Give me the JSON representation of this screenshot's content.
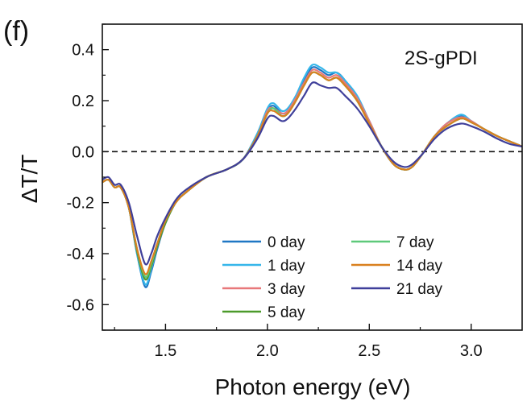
{
  "chart_data": {
    "type": "line",
    "panel_label": "(f)",
    "inset_label": "2S-gPDI",
    "xlabel": "Photon energy (eV)",
    "ylabel": "ΔT/T",
    "xlim": [
      1.19,
      3.25
    ],
    "ylim": [
      -0.7,
      0.5
    ],
    "xticks": [
      1.5,
      2.0,
      2.5,
      3.0
    ],
    "xtick_labels": [
      "1.5",
      "2.0",
      "2.5",
      "3.0"
    ],
    "yticks": [
      -0.6,
      -0.4,
      -0.2,
      0.0,
      0.2,
      0.4
    ],
    "ytick_labels": [
      "-0.6",
      "-0.4",
      "-0.2",
      "0.0",
      "0.2",
      "0.4"
    ],
    "zero_line": "dashed",
    "grid": false,
    "legend_position": "bottom-center",
    "x": [
      1.19,
      1.22,
      1.25,
      1.28,
      1.32,
      1.36,
      1.4,
      1.43,
      1.46,
      1.5,
      1.55,
      1.6,
      1.7,
      1.8,
      1.88,
      1.95,
      2.0,
      2.03,
      2.07,
      2.1,
      2.14,
      2.18,
      2.22,
      2.26,
      2.3,
      2.34,
      2.38,
      2.44,
      2.5,
      2.56,
      2.62,
      2.67,
      2.71,
      2.76,
      2.82,
      2.88,
      2.95,
      3.0,
      3.06,
      3.13,
      3.19,
      3.25
    ],
    "series": [
      {
        "name": "0 day",
        "color": "#1f77c4",
        "values": [
          -0.12,
          -0.11,
          -0.14,
          -0.14,
          -0.22,
          -0.4,
          -0.53,
          -0.47,
          -0.38,
          -0.28,
          -0.2,
          -0.16,
          -0.1,
          -0.07,
          -0.03,
          0.07,
          0.16,
          0.18,
          0.15,
          0.16,
          0.21,
          0.28,
          0.33,
          0.32,
          0.3,
          0.31,
          0.28,
          0.21,
          0.12,
          0.02,
          -0.05,
          -0.07,
          -0.06,
          -0.01,
          0.06,
          0.11,
          0.14,
          0.12,
          0.09,
          0.06,
          0.04,
          0.02
        ]
      },
      {
        "name": "1 day",
        "color": "#35b6ea",
        "values": [
          -0.12,
          -0.11,
          -0.14,
          -0.14,
          -0.22,
          -0.4,
          -0.52,
          -0.46,
          -0.37,
          -0.28,
          -0.2,
          -0.16,
          -0.1,
          -0.07,
          -0.03,
          0.07,
          0.17,
          0.19,
          0.16,
          0.17,
          0.22,
          0.29,
          0.34,
          0.33,
          0.31,
          0.31,
          0.28,
          0.22,
          0.12,
          0.02,
          -0.05,
          -0.07,
          -0.06,
          -0.01,
          0.06,
          0.11,
          0.145,
          0.12,
          0.09,
          0.06,
          0.04,
          0.02
        ]
      },
      {
        "name": "3 day",
        "color": "#e8787a",
        "values": [
          -0.12,
          -0.11,
          -0.14,
          -0.14,
          -0.22,
          -0.39,
          -0.5,
          -0.45,
          -0.37,
          -0.28,
          -0.2,
          -0.16,
          -0.1,
          -0.07,
          -0.03,
          0.06,
          0.16,
          0.17,
          0.15,
          0.16,
          0.21,
          0.27,
          0.32,
          0.31,
          0.29,
          0.3,
          0.27,
          0.21,
          0.12,
          0.02,
          -0.05,
          -0.07,
          -0.06,
          -0.01,
          0.06,
          0.11,
          0.135,
          0.12,
          0.09,
          0.06,
          0.04,
          0.02
        ]
      },
      {
        "name": "5 day",
        "color": "#4c9a2a",
        "values": [
          -0.12,
          -0.11,
          -0.14,
          -0.14,
          -0.22,
          -0.39,
          -0.5,
          -0.45,
          -0.37,
          -0.28,
          -0.2,
          -0.16,
          -0.1,
          -0.07,
          -0.03,
          0.06,
          0.15,
          0.17,
          0.14,
          0.15,
          0.2,
          0.26,
          0.31,
          0.3,
          0.28,
          0.29,
          0.26,
          0.2,
          0.11,
          0.02,
          -0.05,
          -0.07,
          -0.06,
          -0.01,
          0.06,
          0.1,
          0.13,
          0.115,
          0.09,
          0.06,
          0.04,
          0.02
        ]
      },
      {
        "name": "7 day",
        "color": "#5ec97a",
        "values": [
          -0.12,
          -0.11,
          -0.14,
          -0.14,
          -0.22,
          -0.38,
          -0.49,
          -0.44,
          -0.36,
          -0.27,
          -0.2,
          -0.16,
          -0.1,
          -0.07,
          -0.03,
          0.06,
          0.15,
          0.17,
          0.14,
          0.15,
          0.2,
          0.26,
          0.31,
          0.3,
          0.28,
          0.29,
          0.26,
          0.2,
          0.11,
          0.02,
          -0.05,
          -0.07,
          -0.06,
          -0.01,
          0.06,
          0.1,
          0.13,
          0.115,
          0.09,
          0.06,
          0.04,
          0.02
        ]
      },
      {
        "name": "14 day",
        "color": "#d9801f",
        "values": [
          -0.12,
          -0.11,
          -0.14,
          -0.14,
          -0.22,
          -0.38,
          -0.48,
          -0.43,
          -0.36,
          -0.27,
          -0.2,
          -0.16,
          -0.1,
          -0.07,
          -0.03,
          0.06,
          0.15,
          0.16,
          0.14,
          0.15,
          0.2,
          0.26,
          0.31,
          0.3,
          0.28,
          0.29,
          0.26,
          0.2,
          0.11,
          0.02,
          -0.05,
          -0.07,
          -0.06,
          -0.01,
          0.06,
          0.1,
          0.13,
          0.115,
          0.09,
          0.06,
          0.04,
          0.02
        ]
      },
      {
        "name": "21 day",
        "color": "#3f3f9a",
        "values": [
          -0.11,
          -0.1,
          -0.13,
          -0.13,
          -0.2,
          -0.33,
          -0.44,
          -0.4,
          -0.33,
          -0.26,
          -0.19,
          -0.15,
          -0.1,
          -0.07,
          -0.03,
          0.05,
          0.13,
          0.14,
          0.12,
          0.13,
          0.17,
          0.22,
          0.27,
          0.26,
          0.25,
          0.25,
          0.22,
          0.17,
          0.1,
          0.02,
          -0.04,
          -0.06,
          -0.05,
          -0.01,
          0.05,
          0.09,
          0.11,
          0.1,
          0.08,
          0.05,
          0.03,
          0.02
        ]
      }
    ]
  }
}
